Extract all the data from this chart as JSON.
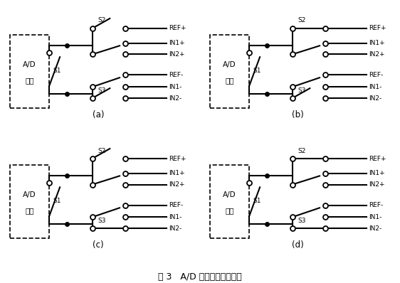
{
  "title": "图 3   A/D 器件的自校准过程",
  "figsize": [
    5.62,
    3.98
  ],
  "dpi": 100,
  "bg_color": "#ffffff",
  "line_color": "#000000",
  "configs": {
    "a": {
      "S2_closed": false,
      "S3_closed": false
    },
    "b": {
      "S2_closed": true,
      "S3_closed": false
    },
    "c": {
      "S2_closed": false,
      "S3_closed": true
    },
    "d": {
      "S2_closed": true,
      "S3_closed": true
    }
  },
  "labels": [
    "(a)",
    "(b)",
    "(c)",
    "(d)"
  ]
}
